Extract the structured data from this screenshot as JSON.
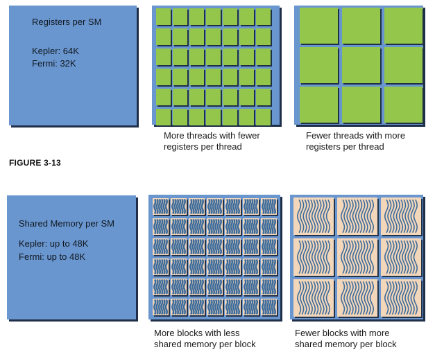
{
  "figure1": {
    "left_box": {
      "title": "Registers per SM",
      "line1": "Kepler: 64K",
      "line2": "Fermi: 32K"
    },
    "middle_caption_line1": "More threads with fewer",
    "middle_caption_line2": "registers per thread",
    "right_caption_line1": "Fewer threads with more",
    "right_caption_line2": "registers per thread"
  },
  "figure_label": "FIGURE 3-13",
  "figure2": {
    "left_box": {
      "title": "Shared Memory per SM",
      "line1": "Kepler: up to 48K",
      "line2": "Fermi: up to 48K"
    },
    "middle_caption_line1": "More blocks with less",
    "middle_caption_line2": "shared memory per block",
    "right_caption_line1": "Fewer blocks with more",
    "right_caption_line2": "shared memory per block"
  },
  "colors": {
    "panel_blue": "#6a96cf",
    "cell_green": "#93c64a",
    "cell_peach": "#f3d7bb",
    "wave_blue": "#3d6c9c",
    "shadow_navy": "#1f2f4a"
  }
}
